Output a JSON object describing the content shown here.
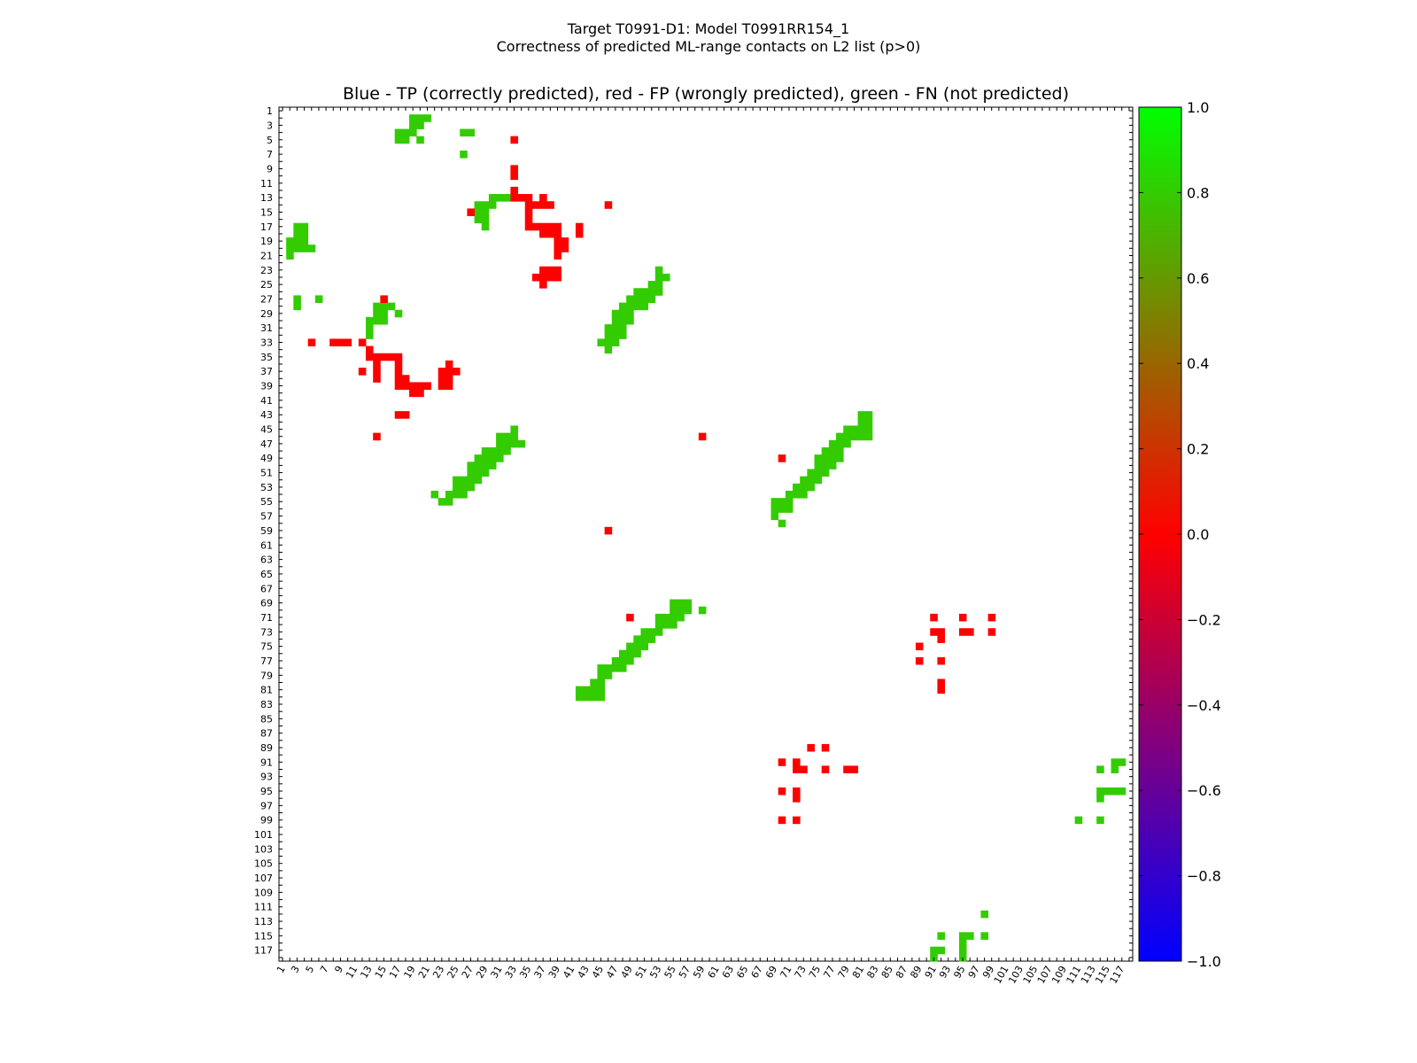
{
  "figure": {
    "title_line1": "Target T0991-D1: Model T0991RR154_1",
    "title_line2": "Correctness of predicted ML-range contacts on L2 list (p>0)"
  },
  "chart_data": {
    "type": "heatmap",
    "title": "Blue - TP (correctly predicted), red - FP (wrongly predicted), green - FN (not predicted)",
    "xlabel": "",
    "ylabel": "",
    "n_residues": 118,
    "xlim": [
      1,
      118
    ],
    "ylim": [
      1,
      118
    ],
    "x_ticks": [
      1,
      3,
      5,
      7,
      9,
      11,
      13,
      15,
      17,
      19,
      21,
      23,
      25,
      27,
      29,
      31,
      33,
      35,
      37,
      39,
      41,
      43,
      45,
      47,
      49,
      51,
      53,
      55,
      57,
      59,
      61,
      63,
      65,
      67,
      69,
      71,
      73,
      75,
      77,
      79,
      81,
      83,
      85,
      87,
      89,
      91,
      93,
      95,
      97,
      99,
      101,
      103,
      105,
      107,
      109,
      111,
      113,
      115,
      117
    ],
    "y_ticks": [
      1,
      3,
      5,
      7,
      9,
      11,
      13,
      15,
      17,
      19,
      21,
      23,
      25,
      27,
      29,
      31,
      33,
      35,
      37,
      39,
      41,
      43,
      45,
      47,
      49,
      51,
      53,
      55,
      57,
      59,
      61,
      63,
      65,
      67,
      69,
      71,
      73,
      75,
      77,
      79,
      81,
      83,
      85,
      87,
      89,
      91,
      93,
      95,
      97,
      99,
      101,
      103,
      105,
      107,
      109,
      111,
      113,
      115,
      117
    ],
    "grid": false,
    "colors": {
      "TP": "#0000ff",
      "FP": "#ff0000",
      "FN": "#33cc00"
    },
    "colorbar": {
      "min": -1.0,
      "max": 1.0,
      "stops": [
        "#0000ff",
        "#ff0000",
        "#00ff00"
      ],
      "ticks": [
        "1.0",
        "0.8",
        "0.6",
        "0.4",
        "0.2",
        "0.0",
        "−0.2",
        "−0.4",
        "−0.6",
        "−0.8",
        "−1.0"
      ]
    },
    "cells_format": "[row, column-start, column-end]",
    "fn_cells": [
      [
        2,
        19,
        21
      ],
      [
        3,
        19,
        20
      ],
      [
        4,
        17,
        19
      ],
      [
        4,
        26,
        27
      ],
      [
        5,
        17,
        18
      ],
      [
        5,
        20,
        20
      ],
      [
        7,
        26,
        26
      ],
      [
        13,
        30,
        32
      ],
      [
        14,
        28,
        30
      ],
      [
        15,
        28,
        29
      ],
      [
        16,
        28,
        29
      ],
      [
        17,
        3,
        4
      ],
      [
        17,
        29,
        29
      ],
      [
        18,
        3,
        4
      ],
      [
        19,
        2,
        4
      ],
      [
        20,
        2,
        5
      ],
      [
        21,
        2,
        2
      ],
      [
        23,
        53,
        53
      ],
      [
        24,
        53,
        54
      ],
      [
        25,
        52,
        53
      ],
      [
        26,
        50,
        53
      ],
      [
        27,
        3,
        3
      ],
      [
        27,
        6,
        6
      ],
      [
        27,
        49,
        52
      ],
      [
        28,
        3,
        3
      ],
      [
        28,
        14,
        16
      ],
      [
        28,
        48,
        51
      ],
      [
        29,
        14,
        15
      ],
      [
        29,
        17,
        17
      ],
      [
        29,
        47,
        49
      ],
      [
        30,
        13,
        15
      ],
      [
        30,
        47,
        49
      ],
      [
        31,
        13,
        13
      ],
      [
        31,
        46,
        48
      ],
      [
        32,
        13,
        13
      ],
      [
        32,
        46,
        48
      ],
      [
        33,
        45,
        47
      ],
      [
        34,
        46,
        46
      ],
      [
        43,
        81,
        82
      ],
      [
        44,
        81,
        82
      ],
      [
        45,
        33,
        33
      ],
      [
        45,
        79,
        82
      ],
      [
        46,
        31,
        33
      ],
      [
        46,
        78,
        82
      ],
      [
        47,
        31,
        34
      ],
      [
        47,
        77,
        79
      ],
      [
        48,
        29,
        32
      ],
      [
        48,
        76,
        78
      ],
      [
        49,
        28,
        31
      ],
      [
        49,
        75,
        78
      ],
      [
        50,
        27,
        30
      ],
      [
        50,
        75,
        77
      ],
      [
        51,
        27,
        29
      ],
      [
        51,
        74,
        76
      ],
      [
        52,
        25,
        28
      ],
      [
        52,
        73,
        75
      ],
      [
        53,
        25,
        27
      ],
      [
        53,
        72,
        74
      ],
      [
        54,
        22,
        22
      ],
      [
        54,
        24,
        26
      ],
      [
        54,
        71,
        73
      ],
      [
        55,
        23,
        24
      ],
      [
        55,
        69,
        71
      ],
      [
        56,
        69,
        71
      ],
      [
        57,
        69,
        69
      ],
      [
        58,
        70,
        70
      ],
      [
        69,
        55,
        57
      ],
      [
        70,
        55,
        57
      ],
      [
        70,
        59,
        59
      ],
      [
        71,
        53,
        56
      ],
      [
        72,
        53,
        55
      ],
      [
        73,
        51,
        53
      ],
      [
        74,
        50,
        52
      ],
      [
        75,
        49,
        51
      ],
      [
        76,
        48,
        50
      ],
      [
        77,
        47,
        49
      ],
      [
        78,
        45,
        48
      ],
      [
        79,
        45,
        46
      ],
      [
        80,
        44,
        45
      ],
      [
        81,
        42,
        45
      ],
      [
        82,
        42,
        45
      ],
      [
        91,
        116,
        117
      ],
      [
        92,
        114,
        114
      ],
      [
        92,
        116,
        116
      ],
      [
        95,
        114,
        117
      ],
      [
        96,
        114,
        114
      ],
      [
        99,
        111,
        111
      ],
      [
        99,
        114,
        114
      ],
      [
        112,
        98,
        98
      ],
      [
        115,
        92,
        92
      ],
      [
        115,
        95,
        96
      ],
      [
        115,
        98,
        98
      ],
      [
        116,
        95,
        95
      ],
      [
        117,
        91,
        92
      ],
      [
        117,
        95,
        95
      ],
      [
        118,
        91,
        91
      ],
      [
        118,
        95,
        95
      ]
    ],
    "fp_cells": [
      [
        5,
        33,
        33
      ],
      [
        9,
        33,
        33
      ],
      [
        10,
        33,
        33
      ],
      [
        12,
        33,
        33
      ],
      [
        13,
        33,
        35
      ],
      [
        13,
        37,
        37
      ],
      [
        14,
        35,
        38
      ],
      [
        14,
        46,
        46
      ],
      [
        15,
        27,
        27
      ],
      [
        15,
        35,
        35
      ],
      [
        16,
        35,
        35
      ],
      [
        17,
        35,
        39
      ],
      [
        17,
        42,
        42
      ],
      [
        18,
        37,
        39
      ],
      [
        18,
        42,
        42
      ],
      [
        19,
        39,
        40
      ],
      [
        20,
        39,
        40
      ],
      [
        21,
        39,
        39
      ],
      [
        23,
        37,
        39
      ],
      [
        24,
        36,
        39
      ],
      [
        25,
        37,
        37
      ],
      [
        27,
        15,
        15
      ],
      [
        33,
        5,
        5
      ],
      [
        33,
        8,
        10
      ],
      [
        33,
        12,
        12
      ],
      [
        34,
        13,
        13
      ],
      [
        35,
        13,
        17
      ],
      [
        36,
        14,
        14
      ],
      [
        36,
        17,
        17
      ],
      [
        36,
        24,
        24
      ],
      [
        37,
        12,
        12
      ],
      [
        37,
        14,
        14
      ],
      [
        37,
        17,
        17
      ],
      [
        37,
        23,
        25
      ],
      [
        38,
        14,
        14
      ],
      [
        38,
        17,
        18
      ],
      [
        38,
        23,
        24
      ],
      [
        39,
        17,
        21
      ],
      [
        39,
        23,
        24
      ],
      [
        40,
        19,
        20
      ],
      [
        43,
        17,
        18
      ],
      [
        46,
        14,
        14
      ],
      [
        46,
        59,
        59
      ],
      [
        49,
        70,
        70
      ],
      [
        59,
        46,
        46
      ],
      [
        71,
        49,
        49
      ],
      [
        71,
        91,
        91
      ],
      [
        71,
        95,
        95
      ],
      [
        71,
        99,
        99
      ],
      [
        73,
        91,
        92
      ],
      [
        73,
        95,
        96
      ],
      [
        73,
        99,
        99
      ],
      [
        74,
        92,
        92
      ],
      [
        75,
        89,
        89
      ],
      [
        77,
        89,
        89
      ],
      [
        77,
        92,
        92
      ],
      [
        80,
        92,
        92
      ],
      [
        81,
        92,
        92
      ],
      [
        89,
        74,
        74
      ],
      [
        89,
        76,
        76
      ],
      [
        91,
        70,
        70
      ],
      [
        91,
        72,
        72
      ],
      [
        92,
        72,
        73
      ],
      [
        92,
        76,
        76
      ],
      [
        92,
        79,
        80
      ],
      [
        95,
        70,
        70
      ],
      [
        95,
        72,
        72
      ],
      [
        96,
        72,
        72
      ],
      [
        99,
        70,
        70
      ],
      [
        99,
        72,
        72
      ]
    ],
    "tp_cells": []
  }
}
